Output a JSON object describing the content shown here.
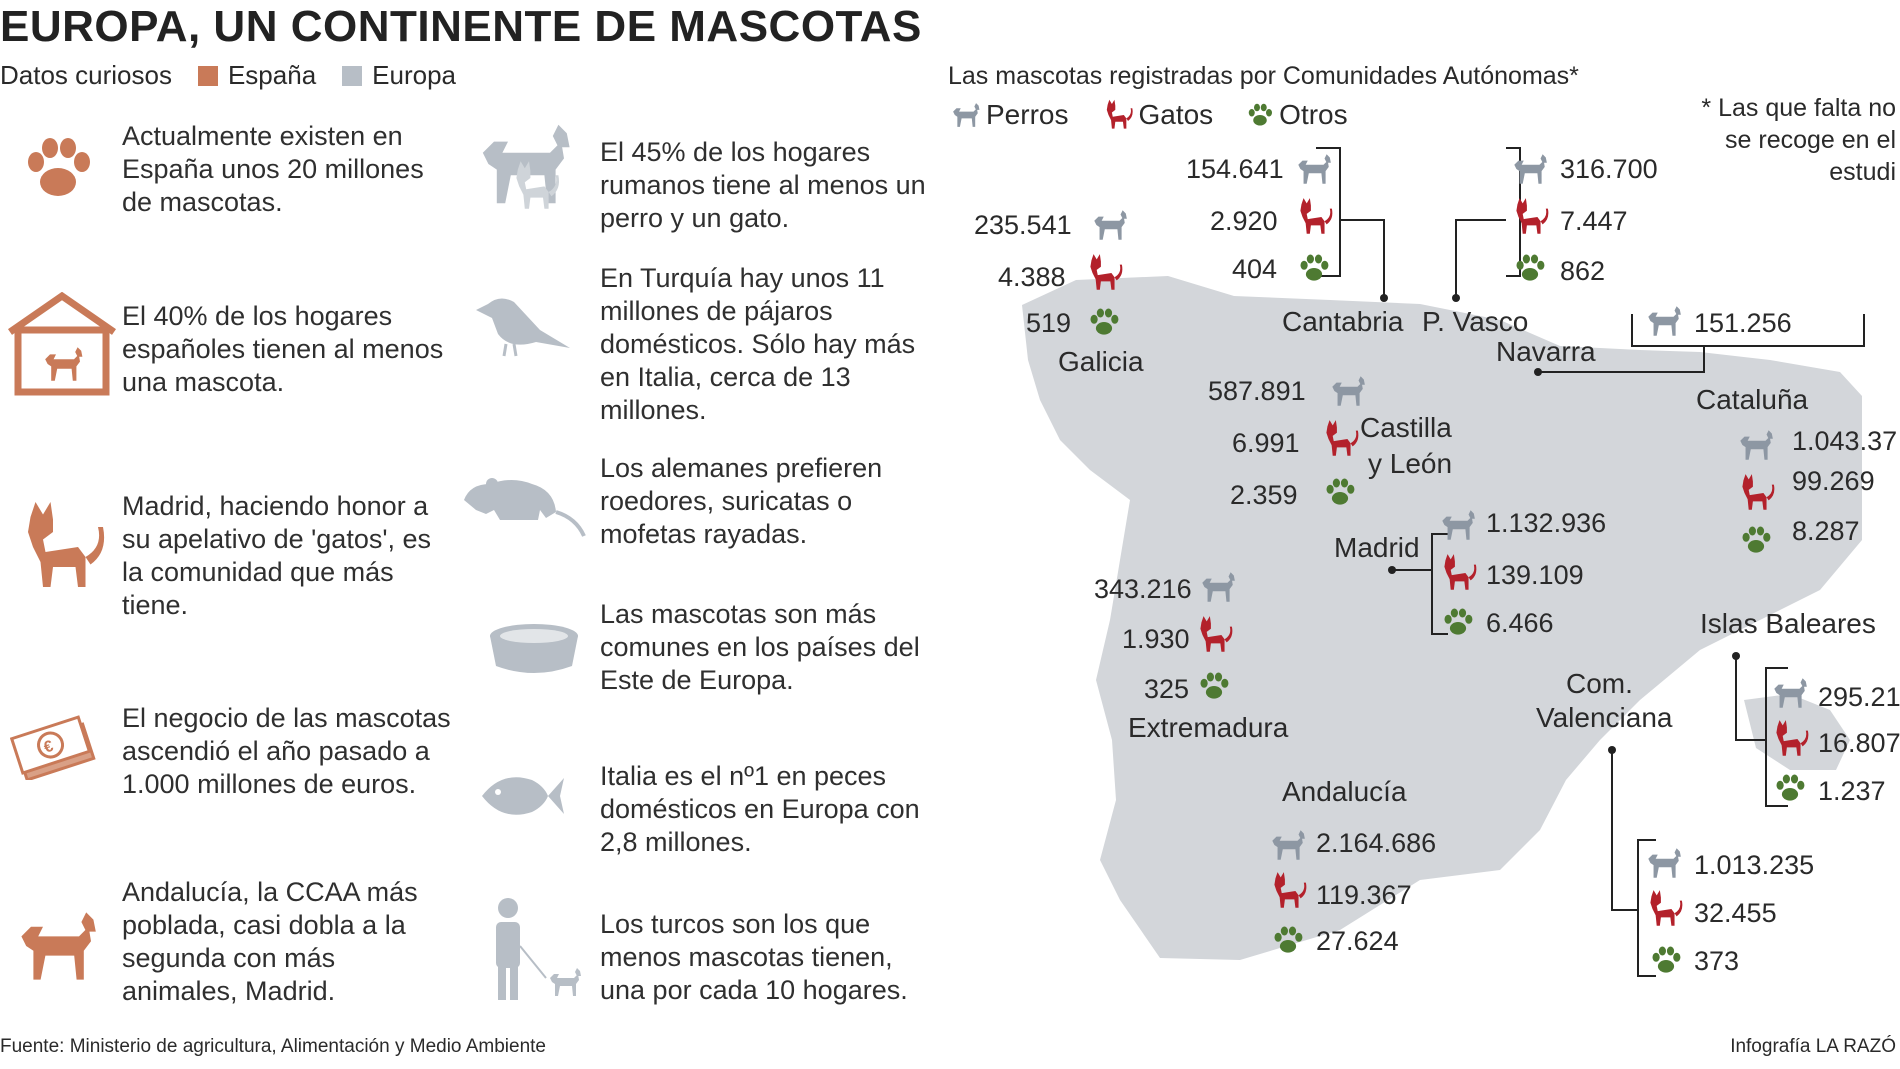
{
  "title": "EUROPA, UN CONTINENTE DE MASCOTAS",
  "legend": {
    "label": "Datos curiosos",
    "spain": "España",
    "europe": "Europa",
    "spain_color": "#c97a58",
    "europe_color": "#b7bec6"
  },
  "facts_spain": [
    {
      "icon": "paw-icon",
      "text": "Actualmente existen en España unos 20 millones de mascotas."
    },
    {
      "icon": "dog-house-icon",
      "text": "El 40% de los hogares españoles tienen al menos una mascota."
    },
    {
      "icon": "cat-icon",
      "text": "Madrid, haciendo honor a su apelativo de 'gatos', es la comunidad que más tiene."
    },
    {
      "icon": "money-icon",
      "text": "El negocio de las mascotas ascendió el año pasado a 1.000 millones de euros."
    },
    {
      "icon": "dog-icon",
      "text": "Andalucía, la CCAA más poblada, casi dobla a la segunda con más animales, Madrid."
    }
  ],
  "facts_europe": [
    {
      "icon": "dog-and-cat-icon",
      "text": "El 45% de los hogares rumanos tiene al menos un perro y un gato."
    },
    {
      "icon": "bird-icon",
      "text": "En Turquía hay unos 11 millones de pájaros domésticos. Sólo hay más en Italia, cerca de 13 millones."
    },
    {
      "icon": "rodent-icon",
      "text": "Los alemanes prefieren roedores, suricatas o mofetas rayadas."
    },
    {
      "icon": "pet-bowl-icon",
      "text": "Las mascotas son más comunes en los países del Este de Europa."
    },
    {
      "icon": "fish-icon",
      "text": "Italia es el nº1 en peces domésticos en Europa con 2,8 millones."
    },
    {
      "icon": "person-walking-dog-icon",
      "text": "Los turcos son los que menos mascotas tienen, una por cada 10 hogares."
    }
  ],
  "map": {
    "title": "Las mascotas registradas por Comunidades Autónomas*",
    "legend": {
      "dogs": "Perros",
      "cats": "Gatos",
      "others": "Otros"
    },
    "colors": {
      "dog": "#8d97a3",
      "cat": "#b3212b",
      "other": "#4e7a32",
      "land": "#d3d6da"
    },
    "note": "* Las que falta no se recoge en el estudi",
    "regions": [
      {
        "name": "Galicia",
        "perros": "235.541",
        "gatos": "4.388",
        "otros": "519"
      },
      {
        "name": "Cantabria",
        "perros": "154.641",
        "gatos": "2.920",
        "otros": "404"
      },
      {
        "name": "P. Vasco",
        "perros": "316.700",
        "gatos": "7.447",
        "otros": "862"
      },
      {
        "name": "Navarra",
        "perros": "151.256"
      },
      {
        "name_line1": "Castilla",
        "name_line2": "y León",
        "perros": "587.891",
        "gatos": "6.991",
        "otros": "2.359"
      },
      {
        "name": "Cataluña",
        "perros": "1.043.37",
        "gatos": "99.269",
        "otros": "8.287"
      },
      {
        "name": "Madrid",
        "perros": "1.132.936",
        "gatos": "139.109",
        "otros": "6.466"
      },
      {
        "name": "Extremadura",
        "perros": "343.216",
        "gatos": "1.930",
        "otros": "325"
      },
      {
        "name": "Islas Baleares",
        "perros": "295.21",
        "gatos": "16.807",
        "otros": "1.237"
      },
      {
        "name_line1": "Com.",
        "name_line2": "Valenciana",
        "perros": "1.013.235",
        "gatos": "32.455",
        "otros": "373"
      },
      {
        "name": "Andalucía",
        "perros": "2.164.686",
        "gatos": "119.367",
        "otros": "27.624"
      }
    ]
  },
  "footer": {
    "source": "Fuente: Ministerio de agricultura, Alimentación y Medio Ambiente",
    "credit": "Infografía LA RAZÓ"
  }
}
